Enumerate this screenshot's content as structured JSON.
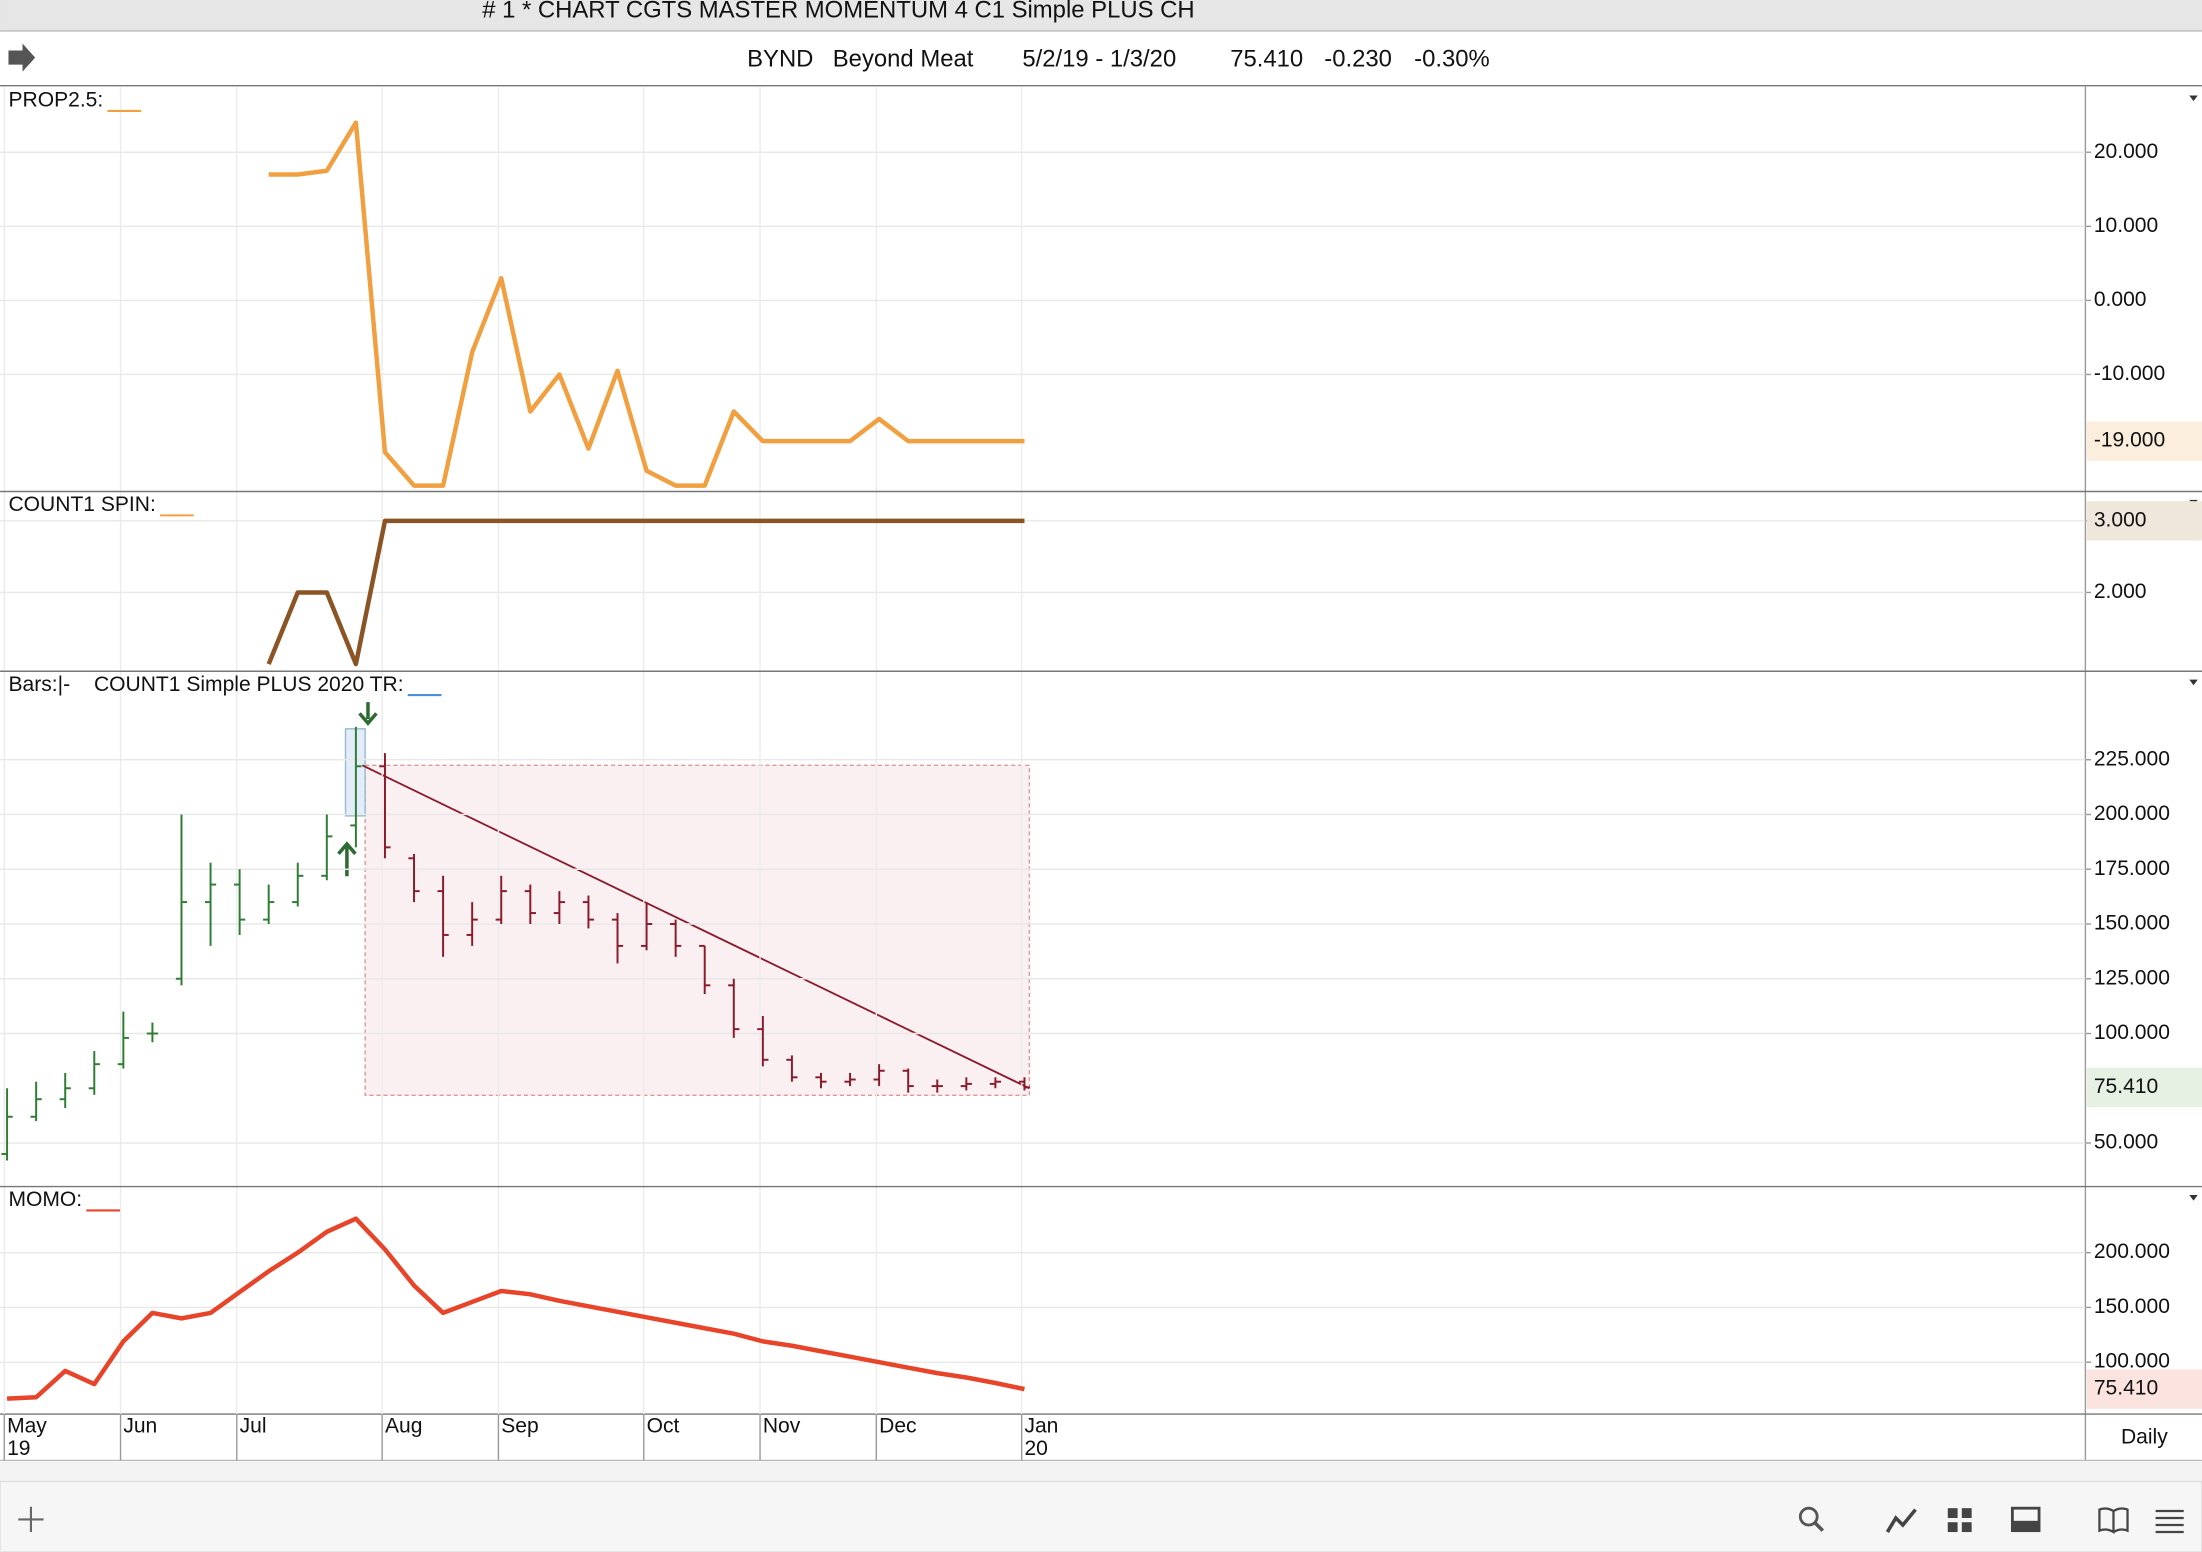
{
  "window": {
    "title": "# 1 * CHART CGTS MASTER MOMENTUM 4 C1 Simple PLUS CH",
    "symbol": "BYND",
    "name": "Beyond Meat",
    "range": "5/2/19 - 1/3/20",
    "last": "75.410",
    "change": "-0.230",
    "change_pct": "-0.30%",
    "period": "Daily"
  },
  "chart_data": [
    {
      "type": "line",
      "title": "PROP2.5:",
      "swatch_color": "#f0a040",
      "color": "#f0a040",
      "grid": true,
      "ylim": [
        -25.8,
        28.8
      ],
      "yticks": [
        {
          "value": 20,
          "label": "20.000"
        },
        {
          "value": 10,
          "label": "10.000"
        },
        {
          "value": 0,
          "label": "0.000"
        },
        {
          "value": -10,
          "label": "-10.000"
        }
      ],
      "values": [
        null,
        null,
        null,
        null,
        null,
        null,
        null,
        null,
        null,
        17,
        17,
        17.5,
        24,
        -20.5,
        -25,
        -25,
        -7,
        3,
        -15,
        -10,
        -20,
        -9.5,
        -23,
        -25,
        -25,
        -15,
        -19,
        -19,
        -19,
        -19,
        -16,
        -19,
        -19,
        -19,
        -19,
        -19
      ],
      "value_labels": [
        null,
        null,
        null,
        null,
        null,
        null,
        null,
        null,
        null,
        null,
        null,
        null,
        null,
        null,
        null,
        null,
        null,
        null,
        null,
        null,
        null,
        null,
        null,
        null,
        null,
        null,
        null,
        null,
        null,
        null,
        null,
        null,
        null,
        null,
        null,
        "-19.000"
      ],
      "last_label_fill": "#fbeedc",
      "last_label_color": "#b5651d"
    },
    {
      "type": "line",
      "title": "COUNT1 SPIN:",
      "swatch_color": "#f0a040",
      "color": "#8a5424",
      "grid": true,
      "ylim": [
        0.9,
        3.41
      ],
      "yticks": [
        {
          "value": 3,
          "label": "3.000"
        },
        {
          "value": 2,
          "label": "2.000"
        }
      ],
      "values": [
        null,
        null,
        null,
        null,
        null,
        null,
        null,
        null,
        null,
        1,
        2,
        2,
        1,
        3,
        3,
        3,
        3,
        3,
        3,
        3,
        3,
        3,
        3,
        3,
        3,
        3,
        3,
        3,
        3,
        3,
        3,
        3,
        3,
        3,
        3,
        3
      ],
      "value_labels": [
        null,
        null,
        null,
        null,
        null,
        null,
        null,
        null,
        null,
        null,
        null,
        null,
        null,
        null,
        null,
        null,
        null,
        null,
        null,
        null,
        null,
        null,
        null,
        null,
        null,
        null,
        null,
        null,
        null,
        null,
        null,
        null,
        null,
        null,
        null,
        "3.000"
      ],
      "last_label_fill": "#efe6dc",
      "last_label_color": "#5a3a1a"
    },
    {
      "type": "ohlc",
      "title": "Bars:|-",
      "legend": "COUNT1 Simple PLUS 2020 TR:",
      "swatch_color": "#4a8fd8",
      "grid": true,
      "ylim": [
        30.1,
        265.4
      ],
      "yticks": [
        {
          "value": 225,
          "label": "225.000"
        },
        {
          "value": 200,
          "label": "200.000"
        },
        {
          "value": 175,
          "label": "175.000"
        },
        {
          "value": 150,
          "label": "150.000"
        },
        {
          "value": 125,
          "label": "125.000"
        },
        {
          "value": 100,
          "label": "100.000"
        },
        {
          "value": 50,
          "label": "50.000"
        }
      ],
      "open": [
        45,
        62,
        70,
        75,
        86,
        100,
        125,
        160,
        168,
        152,
        160,
        172,
        195,
        222,
        180,
        165,
        145,
        152,
        165,
        155,
        160,
        152,
        140,
        150,
        140,
        122,
        102,
        88,
        80,
        78,
        79,
        83,
        76,
        76,
        77,
        78
      ],
      "high": [
        75,
        78,
        82,
        92,
        110,
        105,
        200,
        178,
        175,
        168,
        178,
        200,
        240,
        228,
        182,
        172,
        160,
        172,
        168,
        165,
        163,
        155,
        160,
        152,
        140,
        125,
        108,
        90,
        82,
        82,
        86,
        84,
        79,
        80,
        80,
        80
      ],
      "low": [
        42,
        60,
        66,
        72,
        84,
        96,
        122,
        140,
        145,
        150,
        158,
        170,
        185,
        180,
        160,
        135,
        140,
        150,
        150,
        150,
        148,
        132,
        138,
        135,
        118,
        98,
        85,
        78,
        75,
        76,
        76,
        73,
        73,
        74,
        75,
        74
      ],
      "close": [
        62,
        70,
        75,
        86,
        98,
        100,
        160,
        168,
        152,
        160,
        172,
        190,
        222,
        185,
        165,
        145,
        152,
        165,
        155,
        160,
        152,
        140,
        150,
        140,
        122,
        102,
        88,
        80,
        78,
        79,
        83,
        76,
        76,
        77,
        78,
        75.41
      ],
      "value_labels": [
        null,
        null,
        null,
        null,
        null,
        null,
        null,
        null,
        null,
        null,
        null,
        null,
        null,
        null,
        null,
        null,
        null,
        null,
        null,
        null,
        null,
        null,
        null,
        null,
        null,
        null,
        null,
        null,
        null,
        null,
        null,
        null,
        null,
        null,
        null,
        "75.410"
      ],
      "colors": [
        "#2e7d32",
        "#2e7d32",
        "#2e7d32",
        "#2e7d32",
        "#2e7d32",
        "#2e7d32",
        "#2e7d32",
        "#2e7d32",
        "#2e7d32",
        "#2e7d32",
        "#2e7d32",
        "#2e7d32",
        "#2e7d32",
        "#8b1a2b",
        "#8b1a2b",
        "#8b1a2b",
        "#8b1a2b",
        "#8b1a2b",
        "#8b1a2b",
        "#8b1a2b",
        "#8b1a2b",
        "#8b1a2b",
        "#8b1a2b",
        "#8b1a2b",
        "#8b1a2b",
        "#8b1a2b",
        "#8b1a2b",
        "#8b1a2b",
        "#8b1a2b",
        "#8b1a2b",
        "#8b1a2b",
        "#8b1a2b",
        "#8b1a2b",
        "#8b1a2b",
        "#8b1a2b",
        "#8b1a2b"
      ],
      "last_label_fill": "#e6f0e3",
      "last_label_color": "#1f5a1f"
    },
    {
      "type": "line",
      "title": "MOMO:",
      "swatch_color": "#e8442a",
      "color": "#e8442a",
      "grid": true,
      "ylim": [
        52.6,
        260.3
      ],
      "yticks": [
        {
          "value": 200,
          "label": "200.000"
        },
        {
          "value": 150,
          "label": "150.000"
        },
        {
          "value": 100,
          "label": "100.000"
        }
      ],
      "values": [
        66.7,
        68,
        92,
        80,
        119,
        145,
        140,
        145,
        164,
        183,
        200,
        219,
        231,
        203,
        170,
        145,
        155,
        165,
        162,
        156,
        151,
        146,
        141,
        136,
        131,
        126,
        119,
        115,
        110,
        105,
        100,
        95,
        90,
        86,
        81,
        75.41
      ],
      "value_labels": [
        null,
        null,
        null,
        null,
        null,
        null,
        null,
        null,
        null,
        null,
        null,
        null,
        null,
        null,
        null,
        null,
        null,
        null,
        null,
        null,
        null,
        null,
        null,
        null,
        null,
        null,
        null,
        null,
        null,
        null,
        null,
        null,
        null,
        null,
        null,
        "75.410"
      ],
      "last_label_fill": "#fbe3df",
      "last_label_color": "#c0301a",
      "categories": [
        "May",
        null,
        null,
        null,
        "Jun",
        null,
        null,
        null,
        "Jul",
        null,
        null,
        null,
        null,
        "Aug",
        null,
        null,
        null,
        "Sep",
        null,
        null,
        null,
        null,
        "Oct",
        null,
        null,
        null,
        "Nov",
        null,
        null,
        null,
        "Dec",
        null,
        null,
        null,
        null,
        "Jan"
      ],
      "category_years": [
        "19",
        null,
        null,
        null,
        null,
        null,
        null,
        null,
        null,
        null,
        null,
        null,
        null,
        null,
        null,
        null,
        null,
        null,
        null,
        null,
        null,
        null,
        null,
        null,
        null,
        null,
        null,
        null,
        null,
        null,
        null,
        null,
        null,
        null,
        null,
        "20"
      ]
    }
  ]
}
